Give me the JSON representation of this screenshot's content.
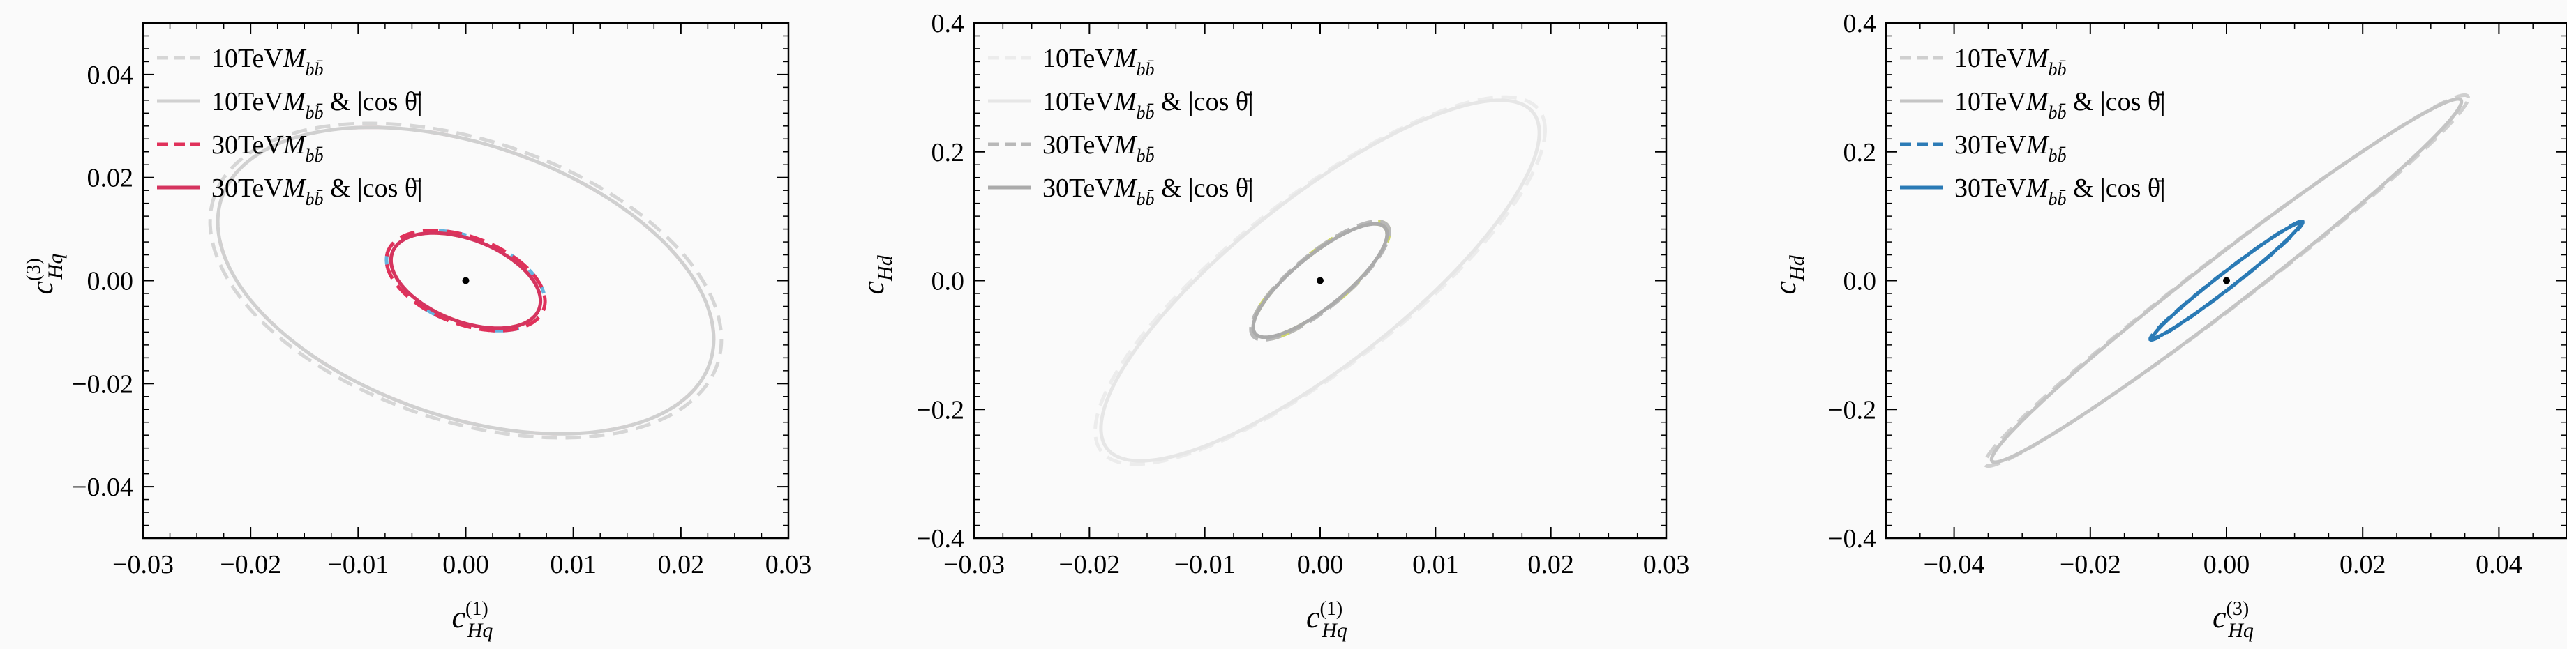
{
  "chart_data": [
    {
      "type": "line",
      "xlim": [
        -0.03,
        0.03
      ],
      "ylim": [
        -0.05,
        0.05
      ],
      "xticks": [
        "−0.03",
        "−0.02",
        "−0.01",
        "0.00",
        "0.01",
        "0.02",
        "0.03"
      ],
      "yticks": [
        "−0.04",
        "−0.02",
        "0.00",
        "0.02",
        "0.04"
      ],
      "xlabel": {
        "main": "c",
        "sub": "Hq",
        "sup": "(1)"
      },
      "ylabel": {
        "main": "c",
        "sub": "Hq",
        "sup": "(3)"
      },
      "legend": "top-left",
      "center": [
        0,
        0
      ],
      "series": [
        {
          "name": "10TeVM_bb",
          "label": {
            "energy": "10TeV",
            "m": "M",
            "sub": "bb̄",
            "extra": ""
          },
          "style": "dashed",
          "color": "#d6d6d6",
          "shape": {
            "cx": 0,
            "cy": 0,
            "a": 0.0205,
            "b": 0.0328,
            "ang": 28
          }
        },
        {
          "name": "10TeVM_bb_cos",
          "label": {
            "energy": "10TeV",
            "m": "M",
            "sub": "bb̄",
            "extra": " & |cos θ̄|"
          },
          "style": "solid",
          "color": "#d0d0d0",
          "accent": "#f4b8c4",
          "shape": {
            "cx": 0,
            "cy": 0,
            "a": 0.0198,
            "b": 0.032,
            "ang": 28
          }
        },
        {
          "name": "30TeVM_bb",
          "label": {
            "energy": "30TeV",
            "m": "M",
            "sub": "bb̄",
            "extra": ""
          },
          "style": "dashed",
          "color": "#e0315a",
          "accent": "#4aa6d8",
          "shape": {
            "cx": 0,
            "cy": 0,
            "a": 0.0062,
            "b": 0.0105,
            "ang": 28
          }
        },
        {
          "name": "30TeVM_bb_cos",
          "label": {
            "energy": "30TeV",
            "m": "M",
            "sub": "bb̄",
            "extra": " & |cos θ̄|"
          },
          "style": "solid",
          "color": "#d5345f",
          "accent": "#e6a52c",
          "shape": {
            "cx": 0,
            "cy": 0,
            "a": 0.0058,
            "b": 0.01,
            "ang": 28
          }
        }
      ]
    },
    {
      "type": "line",
      "xlim": [
        -0.03,
        0.03
      ],
      "ylim": [
        -0.4,
        0.4
      ],
      "xticks": [
        "−0.03",
        "−0.02",
        "−0.01",
        "0.00",
        "0.01",
        "0.02",
        "0.03"
      ],
      "yticks": [
        "−0.4",
        "−0.2",
        "0.0",
        "0.2",
        "0.4"
      ],
      "xlabel": {
        "main": "c",
        "sub": "Hq",
        "sup": "(1)"
      },
      "ylabel": {
        "main": "c",
        "sub": "Hd",
        "sup": ""
      },
      "legend": "top-left",
      "center": [
        0,
        0
      ],
      "series": [
        {
          "name": "10TeVM_bb",
          "label": {
            "energy": "10TeV",
            "m": "M",
            "sub": "bb̄",
            "extra": ""
          },
          "style": "dashed",
          "color": "#ececec",
          "shape": {
            "cx": 0,
            "cy": 0,
            "x_ext": 0.0195,
            "y_ext": 0.285,
            "corr": 0.82
          }
        },
        {
          "name": "10TeVM_bb_cos",
          "label": {
            "energy": "10TeV",
            "m": "M",
            "sub": "bb̄",
            "extra": " & |cos θ̄|"
          },
          "style": "solid",
          "color": "#e6e6e6",
          "shape": {
            "cx": 0,
            "cy": 0,
            "x_ext": 0.019,
            "y_ext": 0.28,
            "corr": 0.82
          }
        },
        {
          "name": "30TeVM_bb",
          "label": {
            "energy": "30TeV",
            "m": "M",
            "sub": "bb̄",
            "extra": ""
          },
          "style": "dashed",
          "color": "#b8b8b8",
          "accent": "#c6cf52",
          "shape": {
            "cx": 0,
            "cy": 0,
            "x_ext": 0.006,
            "y_ext": 0.092,
            "corr": 0.82
          }
        },
        {
          "name": "30TeVM_bb_cos",
          "label": {
            "energy": "30TeV",
            "m": "M",
            "sub": "bb̄",
            "extra": " & |cos θ̄|"
          },
          "style": "solid",
          "color": "#ababab",
          "accent": "#b9c44a",
          "shape": {
            "cx": 0,
            "cy": 0,
            "x_ext": 0.0058,
            "y_ext": 0.088,
            "corr": 0.82
          }
        }
      ]
    },
    {
      "type": "line",
      "xlim": [
        -0.05,
        0.05
      ],
      "ylim": [
        -0.4,
        0.4
      ],
      "xticks": [
        "−0.04",
        "−0.02",
        "0.00",
        "0.02",
        "0.04"
      ],
      "yticks": [
        "−0.4",
        "−0.2",
        "0.0",
        "0.2",
        "0.4"
      ],
      "xlabel": {
        "main": "c",
        "sub": "Hq",
        "sup": "(3)"
      },
      "ylabel": {
        "main": "c",
        "sub": "Hd",
        "sup": ""
      },
      "legend": "top-left",
      "center": [
        0,
        0
      ],
      "series": [
        {
          "name": "10TeVM_bb",
          "label": {
            "energy": "10TeV",
            "m": "M",
            "sub": "bb̄",
            "extra": ""
          },
          "style": "dashed",
          "color": "#cfcfcf",
          "shape": {
            "cx": 0,
            "cy": 0,
            "x_ext": 0.0355,
            "y_ext": 0.288,
            "corr": 0.985
          }
        },
        {
          "name": "10TeVM_bb_cos",
          "label": {
            "energy": "10TeV",
            "m": "M",
            "sub": "bb̄",
            "extra": " & |cos θ̄|"
          },
          "style": "solid",
          "color": "#c4c4c4",
          "shape": {
            "cx": 0,
            "cy": 0,
            "x_ext": 0.0345,
            "y_ext": 0.282,
            "corr": 0.985
          }
        },
        {
          "name": "30TeVM_bb",
          "label": {
            "energy": "30TeV",
            "m": "M",
            "sub": "bb̄",
            "extra": ""
          },
          "style": "dashed",
          "color": "#2c7bb6",
          "shape": {
            "cx": 0,
            "cy": 0,
            "x_ext": 0.0112,
            "y_ext": 0.092,
            "corr": 0.985
          }
        },
        {
          "name": "30TeVM_bb_cos",
          "label": {
            "energy": "30TeV",
            "m": "M",
            "sub": "bb̄",
            "extra": " & |cos θ̄|"
          },
          "style": "solid",
          "color": "#2a7ab5",
          "shape": {
            "cx": 0,
            "cy": 0,
            "x_ext": 0.0108,
            "y_ext": 0.089,
            "corr": 0.985
          }
        }
      ]
    }
  ]
}
